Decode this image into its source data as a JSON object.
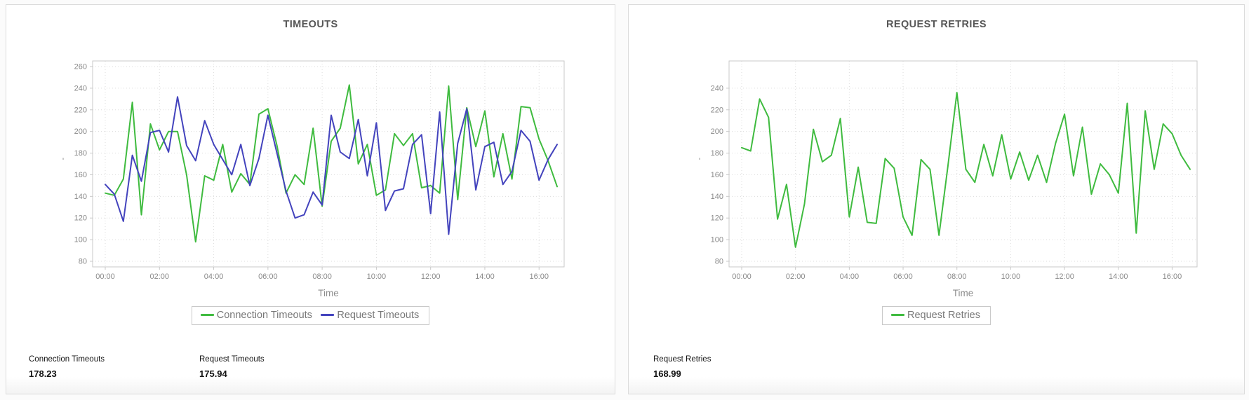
{
  "cards": [
    {
      "title": "TIMEOUTS",
      "summaries": [
        {
          "label": "Connection Timeouts",
          "value": "178.23"
        },
        {
          "label": "Request Timeouts",
          "value": "175.94"
        }
      ]
    },
    {
      "title": "REQUEST RETRIES",
      "summaries": [
        {
          "label": "Request Retries",
          "value": "168.99"
        }
      ]
    }
  ],
  "colors": {
    "green_series": "#3fbb3f",
    "blue_series": "#4343bd",
    "grid": "#dcdcdc",
    "plot_border": "#c9c9c9",
    "tick_text": "#8a8a8a",
    "axis_title_text": "#8c8c8c"
  },
  "chart_data": [
    {
      "type": "line",
      "title": "TIMEOUTS",
      "xlabel": "Time",
      "ylabel": "'",
      "grid": true,
      "legend_position": "bottom",
      "x_tick_labels": [
        "00:00",
        "02:00",
        "04:00",
        "06:00",
        "08:00",
        "10:00",
        "12:00",
        "14:00",
        "16:00"
      ],
      "x_step_minutes": 20,
      "y_ticks": [
        80,
        100,
        120,
        140,
        160,
        180,
        200,
        220,
        240,
        260
      ],
      "ylim": [
        74,
        266
      ],
      "series": [
        {
          "name": "Connection Timeouts",
          "color": "#3fbb3f",
          "average": 178.23,
          "values": [
            143,
            141,
            156,
            227,
            123,
            207,
            183,
            200,
            200,
            160,
            98,
            159,
            155,
            188,
            144,
            161,
            151,
            216,
            221,
            187,
            143,
            160,
            151,
            203,
            131,
            191,
            203,
            243,
            170,
            188,
            141,
            146,
            198,
            187,
            198,
            148,
            150,
            143,
            242,
            137,
            222,
            186,
            219,
            158,
            198,
            156,
            223,
            222,
            193,
            173,
            149
          ]
        },
        {
          "name": "Request Timeouts",
          "color": "#4343bd",
          "average": 175.94,
          "values": [
            151,
            142,
            117,
            178,
            154,
            199,
            201,
            181,
            232,
            187,
            173,
            210,
            188,
            174,
            160,
            188,
            150,
            175,
            215,
            180,
            145,
            120,
            123,
            144,
            132,
            215,
            181,
            175,
            211,
            159,
            208,
            127,
            145,
            147,
            188,
            197,
            124,
            218,
            105,
            189,
            221,
            146,
            186,
            190,
            151,
            163,
            201,
            191,
            155,
            174,
            188
          ]
        }
      ]
    },
    {
      "type": "line",
      "title": "REQUEST RETRIES",
      "xlabel": "Time",
      "ylabel": "'",
      "grid": true,
      "legend_position": "bottom",
      "x_tick_labels": [
        "00:00",
        "02:00",
        "04:00",
        "06:00",
        "08:00",
        "10:00",
        "12:00",
        "14:00",
        "16:00"
      ],
      "x_step_minutes": 20,
      "y_ticks": [
        80,
        100,
        120,
        140,
        160,
        180,
        200,
        220,
        240
      ],
      "ylim": [
        72,
        266
      ],
      "series": [
        {
          "name": "Request Retries",
          "color": "#3fbb3f",
          "average": 168.99,
          "values": [
            185,
            182,
            230,
            213,
            119,
            151,
            93,
            133,
            202,
            172,
            178,
            212,
            121,
            167,
            116,
            115,
            175,
            166,
            121,
            104,
            174,
            165,
            104,
            168,
            236,
            165,
            153,
            188,
            159,
            197,
            156,
            181,
            155,
            178,
            153,
            189,
            216,
            159,
            204,
            142,
            170,
            160,
            143,
            226,
            106,
            219,
            165,
            207,
            198,
            178,
            165
          ]
        }
      ]
    }
  ]
}
